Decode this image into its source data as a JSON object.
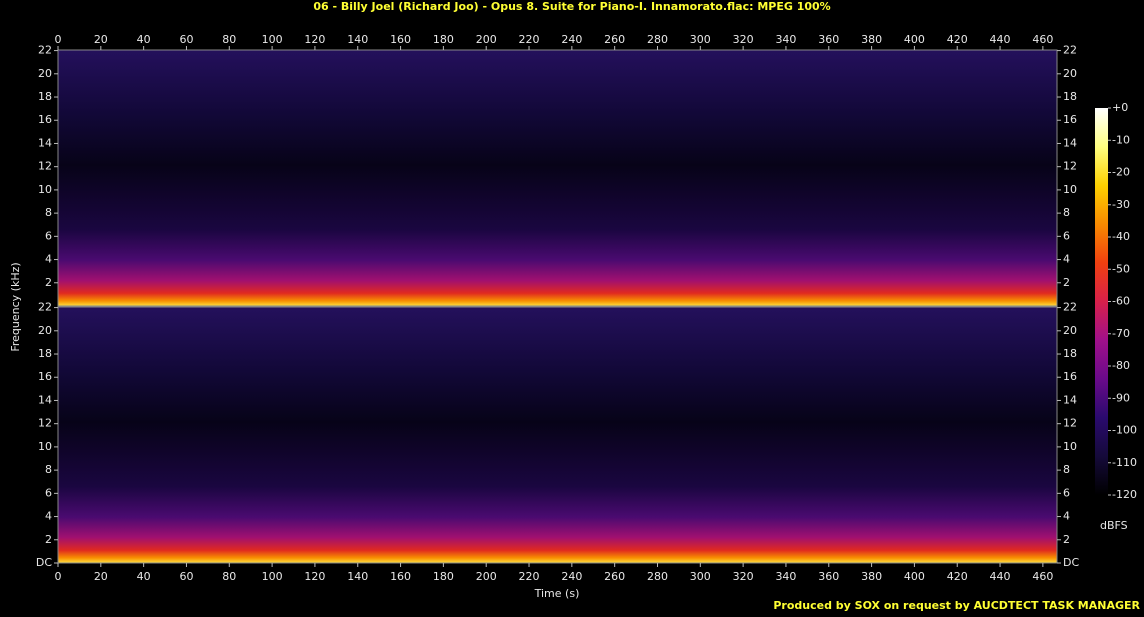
{
  "chart_data": {
    "type": "spectrogram",
    "title": "06 - Billy Joel (Richard Joo) - Opus 8. Suite for Piano-I. Innamorato.flac: MPEG 100%",
    "xlabel": "Time (s)",
    "ylabel": "Frequency (kHz)",
    "xlim": [
      0,
      466.6
    ],
    "xticks": [
      0,
      20,
      40,
      60,
      80,
      100,
      120,
      140,
      160,
      180,
      200,
      220,
      240,
      260,
      280,
      300,
      320,
      340,
      360,
      380,
      400,
      420,
      440,
      460
    ],
    "ylim": [
      0,
      22.05
    ],
    "panels": [
      {
        "yticks": [
          2,
          4,
          6,
          8,
          10,
          12,
          14,
          16,
          18,
          20,
          22
        ]
      },
      {
        "yticks": [
          {
            "value": 0,
            "label": "DC"
          },
          2,
          4,
          6,
          8,
          10,
          12,
          14,
          16,
          18,
          20,
          22
        ]
      }
    ],
    "colorbar": {
      "label": "dBFS",
      "lim": [
        -120,
        0
      ],
      "ticks": [
        {
          "value": 0,
          "label": "+0"
        },
        -10,
        -20,
        -30,
        -40,
        -50,
        -60,
        -70,
        -80,
        -90,
        -100,
        -110,
        -120
      ],
      "colors": [
        "#000000",
        "#150a3a",
        "#2a0a6e",
        "#6a0a8a",
        "#a0108a",
        "#d8204a",
        "#f04010",
        "#f88a00",
        "#fcd000",
        "#ffff80",
        "#ffffff"
      ]
    },
    "credit": "Produced by SOX on request by AUCDTECT TASK MANAGER"
  }
}
